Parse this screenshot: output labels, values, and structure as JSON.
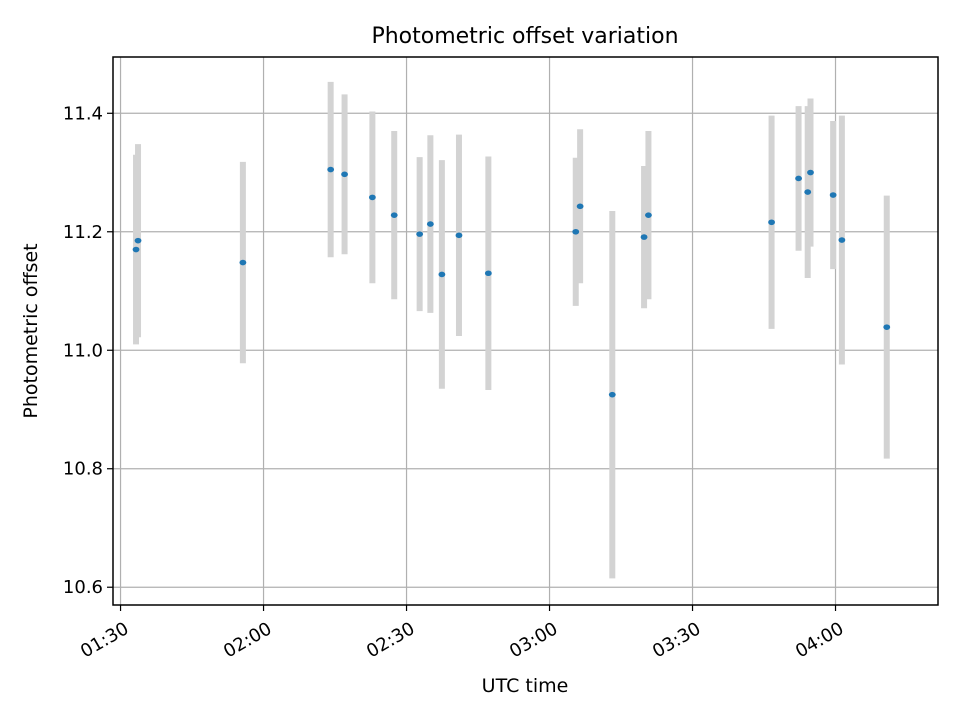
{
  "chart_data": {
    "type": "scatter",
    "title": "Photometric offset variation",
    "xlabel": "UTC time",
    "ylabel": "Photometric offset",
    "x_ticks": [
      "01:30",
      "02:00",
      "02:30",
      "03:00",
      "03:30",
      "04:00"
    ],
    "y_ticks": [
      "10.6",
      "10.8",
      "11.0",
      "11.2",
      "11.4"
    ],
    "xlim": [
      "01:28:25",
      "04:21:30"
    ],
    "ylim": [
      10.57,
      11.495
    ],
    "grid": true,
    "series": [
      {
        "points": [
          {
            "x": "01:33:15",
            "y": 11.17,
            "err": 0.16
          },
          {
            "x": "01:33:40",
            "y": 11.185,
            "err": 0.163
          },
          {
            "x": "01:55:40",
            "y": 11.148,
            "err": 0.17
          },
          {
            "x": "02:14:05",
            "y": 11.305,
            "err": 0.148
          },
          {
            "x": "02:17:00",
            "y": 11.297,
            "err": 0.135
          },
          {
            "x": "02:22:50",
            "y": 11.258,
            "err": 0.145
          },
          {
            "x": "02:27:25",
            "y": 11.228,
            "err": 0.142
          },
          {
            "x": "02:32:45",
            "y": 11.196,
            "err": 0.13
          },
          {
            "x": "02:35:00",
            "y": 11.213,
            "err": 0.15
          },
          {
            "x": "02:37:25",
            "y": 11.128,
            "err": 0.193
          },
          {
            "x": "02:41:00",
            "y": 11.194,
            "err": 0.17
          },
          {
            "x": "02:47:10",
            "y": 11.13,
            "err": 0.197
          },
          {
            "x": "03:05:30",
            "y": 11.2,
            "err": 0.125
          },
          {
            "x": "03:06:25",
            "y": 11.243,
            "err": 0.13
          },
          {
            "x": "03:13:10",
            "y": 10.925,
            "err": 0.31
          },
          {
            "x": "03:19:50",
            "y": 11.191,
            "err": 0.12
          },
          {
            "x": "03:20:45",
            "y": 11.228,
            "err": 0.142
          },
          {
            "x": "03:46:35",
            "y": 11.216,
            "err": 0.18
          },
          {
            "x": "03:52:15",
            "y": 11.29,
            "err": 0.122
          },
          {
            "x": "03:54:10",
            "y": 11.267,
            "err": 0.145
          },
          {
            "x": "03:54:45",
            "y": 11.3,
            "err": 0.125
          },
          {
            "x": "03:59:30",
            "y": 11.262,
            "err": 0.125
          },
          {
            "x": "04:01:20",
            "y": 11.186,
            "err": 0.21
          },
          {
            "x": "04:10:45",
            "y": 11.039,
            "err": 0.222
          }
        ]
      }
    ],
    "colors": {
      "marker": "#1f77b4",
      "errorbar": "#d3d3d3",
      "grid": "#b0b0b0",
      "axes": "#000000"
    }
  }
}
